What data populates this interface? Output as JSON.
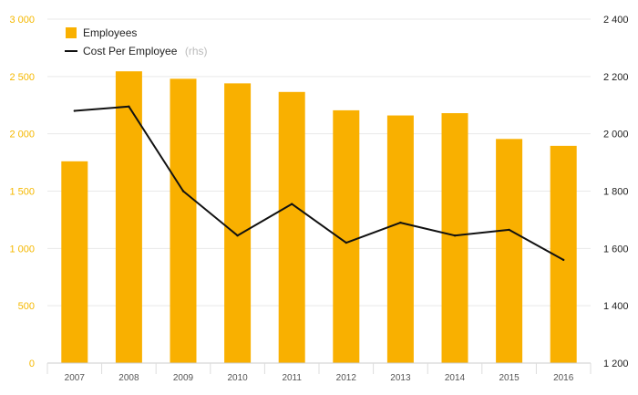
{
  "chart_data": {
    "type": "bar",
    "categories": [
      "2007",
      "2008",
      "2009",
      "2010",
      "2011",
      "2012",
      "2013",
      "2014",
      "2015",
      "2016"
    ],
    "series": [
      {
        "name": "Employees",
        "type": "bar",
        "axis": "left",
        "color": "#f9b000",
        "values": [
          1760,
          2545,
          2480,
          2440,
          2365,
          2205,
          2160,
          2180,
          1955,
          1895
        ]
      },
      {
        "name": "Cost Per Employee",
        "name_suffix": "(rhs)",
        "type": "line",
        "axis": "right",
        "color": "#111111",
        "values": [
          2080,
          2095,
          1800,
          1645,
          1755,
          1620,
          1690,
          1645,
          1665,
          1560
        ]
      }
    ],
    "y_left": {
      "lim": [
        0,
        3000
      ],
      "ticks": [
        0,
        500,
        1000,
        1500,
        2000,
        2500,
        3000
      ],
      "tick_labels": [
        "0",
        "500",
        "1 000",
        "1 500",
        "2 000",
        "2 500",
        "3 000"
      ],
      "color": "#f5b800"
    },
    "y_right": {
      "lim": [
        1200,
        2400
      ],
      "ticks": [
        1200,
        1400,
        1600,
        1800,
        2000,
        2200,
        2400
      ],
      "tick_labels": [
        "1 200",
        "1 400",
        "1 600",
        "1 800",
        "2 000",
        "2 200",
        "2 400"
      ],
      "color": "#222222"
    },
    "grid": true,
    "legend_position": "top-left"
  }
}
